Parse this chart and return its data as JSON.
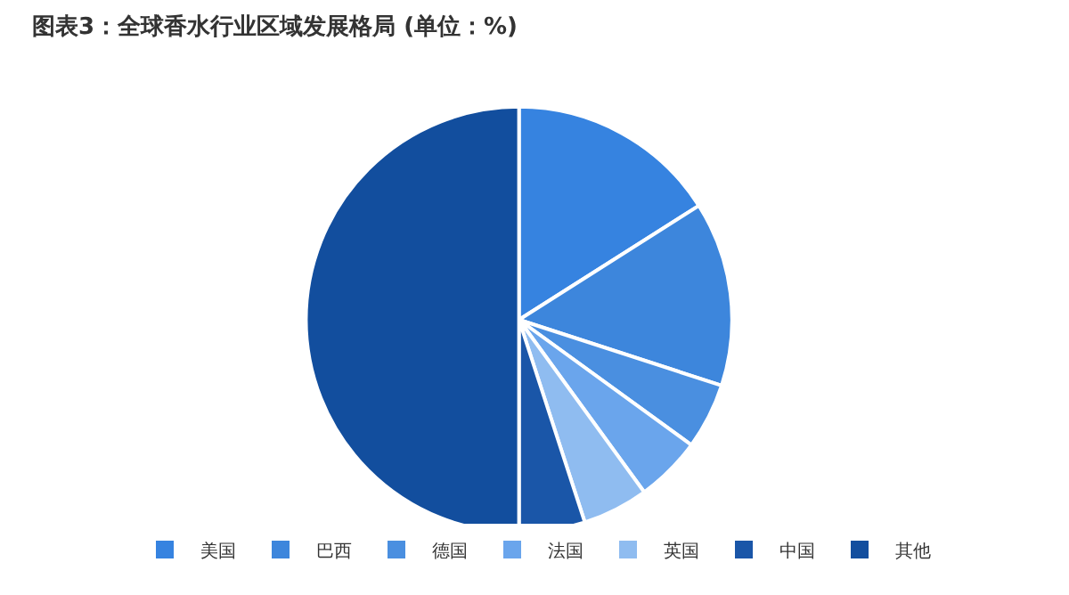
{
  "chart_data": {
    "type": "pie",
    "title": "图表3：全球香水行业区域发展格局 (单位：%)",
    "categories": [
      "美国",
      "巴西",
      "德国",
      "法国",
      "英国",
      "中国",
      "其他"
    ],
    "values": [
      16,
      14,
      5,
      5,
      5,
      5,
      50
    ],
    "colors": [
      "#3683e0",
      "#3d86dc",
      "#4a8fe0",
      "#6aa5ec",
      "#8fbcf0",
      "#1a56a8",
      "#124e9e"
    ],
    "legend": "bottom"
  }
}
